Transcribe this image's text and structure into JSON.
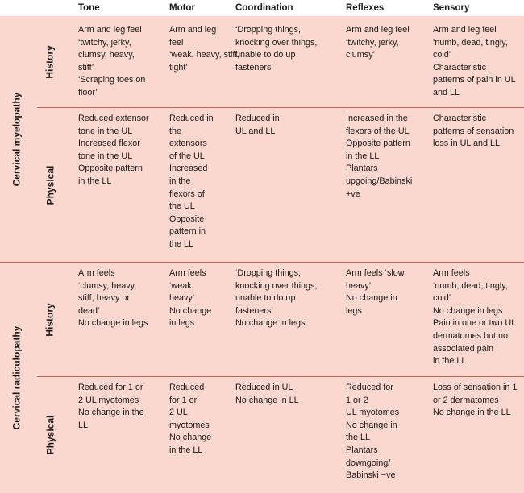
{
  "columns": [
    "Tone",
    "Motor",
    "Coordination",
    "Reflexes",
    "Sensory"
  ],
  "sections": [
    {
      "label": "Cervical myelopathy",
      "rows": [
        {
          "label": "History",
          "cells": [
            "Arm and leg feel\n‘twitchy, jerky,\nclumsy, heavy,\nstiff’\n‘Scraping toes on\nfloor’",
            "Arm and leg\nfeel\n‘weak, heavy, stiff,\ntight’",
            "‘Dropping things,\nknocking over things,\nunable to do up\nfasteners’",
            "Arm and leg feel\n‘twitchy, jerky,\nclumsy’",
            "Arm and leg feel\n‘numb, dead, tingly,\ncold’\nCharacteristic\npatterns of pain in UL\nand LL"
          ]
        },
        {
          "label": "Physical",
          "cells": [
            "Reduced extensor\ntone in the UL\nIncreased flexor\ntone in the UL\nOpposite pattern\nin the LL",
            "Reduced in\nthe\nextensors\nof the UL\nIncreased\nin the\nflexors of\nthe UL\nOpposite\npattern in\nthe LL",
            "Reduced in\nUL and LL",
            "Increased in the\nflexors of the UL\nOpposite pattern\nin the LL\nPlantars\nupgoing/Babinski\n+ve",
            "Characteristic\npatterns of sensation\nloss in UL and LL"
          ]
        }
      ]
    },
    {
      "label": "Cervical radiculopathy",
      "rows": [
        {
          "label": "History",
          "cells": [
            "Arm feels\n‘clumsy, heavy,\nstiff, heavy or\ndead’\nNo change in legs",
            "Arm feels\n‘weak,\nheavy’\nNo change\nin legs",
            "‘Dropping things,\nknocking over things,\nunable to do up\nfasteners’\nNo change in legs",
            "Arm feels ‘slow,\nheavy’\nNo change in\nlegs",
            "Arm feels\n‘numb, dead, tingly,\ncold’\nNo change in legs\nPain in one or two UL\ndermatomes but no\nassociated pain\nin the LL"
          ]
        },
        {
          "label": "Physical",
          "cells": [
            "Reduced for 1 or\n2 UL myotomes\nNo change in the\nLL",
            "Reduced\nfor 1 or\n2 UL\nmyotomes\nNo change\nin the LL",
            "Reduced in UL\nNo change in LL",
            "Reduced for\n1 or 2\nUL myotomes\nNo change in\nthe LL\nPlantars\ndowngoing/\nBabinski −ve",
            "Loss of sensation in 1\nor 2 dermatomes\nNo change in the LL"
          ]
        }
      ]
    }
  ]
}
